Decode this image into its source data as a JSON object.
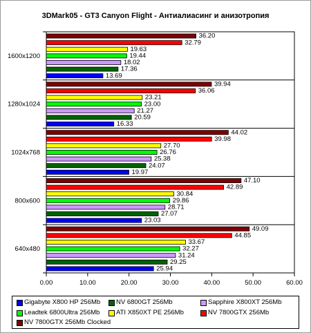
{
  "chart_data": {
    "type": "bar",
    "orientation": "horizontal",
    "title": "3DMark05 - GT3 Canyon Flight - Антиалиасинг и анизотропия",
    "xlabel": "",
    "ylabel": "",
    "xlim": [
      0,
      60
    ],
    "xticks": [
      "0.00",
      "10.00",
      "20.00",
      "30.00",
      "40.00",
      "50.00",
      "60.00"
    ],
    "grid": false,
    "legend_position": "bottom",
    "categories": [
      "1600x1200",
      "1280x1024",
      "1024x768",
      "800x600",
      "640x480"
    ],
    "series": [
      {
        "name": "NV 7800GTX 256Mb Clocked",
        "color": "#800000",
        "values": [
          36.2,
          39.94,
          44.02,
          47.1,
          49.09
        ],
        "labels": [
          "36.20",
          "39.94",
          "44.02",
          "47.10",
          "49.09"
        ]
      },
      {
        "name": "NV 7800GTX 256Mb",
        "color": "#ff0000",
        "values": [
          32.79,
          36.06,
          39.98,
          42.89,
          44.85
        ],
        "labels": [
          "32.79",
          "36.06",
          "39.98",
          "42.89",
          "44.85"
        ]
      },
      {
        "name": "ATI X850XT PE 256Mb",
        "color": "#ffff00",
        "values": [
          19.63,
          23.21,
          27.7,
          30.84,
          33.67
        ],
        "labels": [
          "19.63",
          "23.21",
          "27.70",
          "30.84",
          "33.67"
        ]
      },
      {
        "name": "Leadtek 6800Ultra 256Mb",
        "color": "#00ff00",
        "values": [
          19.44,
          23.0,
          26.76,
          29.86,
          32.27
        ],
        "labels": [
          "19.44",
          "23.00",
          "26.76",
          "29.86",
          "32.27"
        ]
      },
      {
        "name": "Sapphire X800XT 256Mb",
        "color": "#cc99ff",
        "values": [
          18.02,
          21.27,
          25.38,
          28.71,
          31.24
        ],
        "labels": [
          "18.02",
          "21.27",
          "25.38",
          "28.71",
          "31.24"
        ]
      },
      {
        "name": "NV 6800GT 256Mb",
        "color": "#006400",
        "values": [
          17.36,
          20.59,
          24.07,
          27.07,
          29.25
        ],
        "labels": [
          "17.36",
          "20.59",
          "24.07",
          "27.07",
          "29.25"
        ]
      },
      {
        "name": "Gigabyte X800 HP 256Mb",
        "color": "#0000ff",
        "values": [
          13.69,
          16.33,
          19.97,
          23.03,
          25.94
        ],
        "labels": [
          "13.69",
          "16.33",
          "19.97",
          "23.03",
          "25.94"
        ]
      }
    ],
    "legend_order": [
      "Gigabyte X800 HP 256Mb",
      "NV 6800GT 256Mb",
      "Sapphire X800XT 256Mb",
      "Leadtek 6800Ultra 256Mb",
      "ATI X850XT PE 256Mb",
      "NV 7800GTX 256Mb",
      "NV 7800GTX 256Mb Clocked"
    ]
  }
}
